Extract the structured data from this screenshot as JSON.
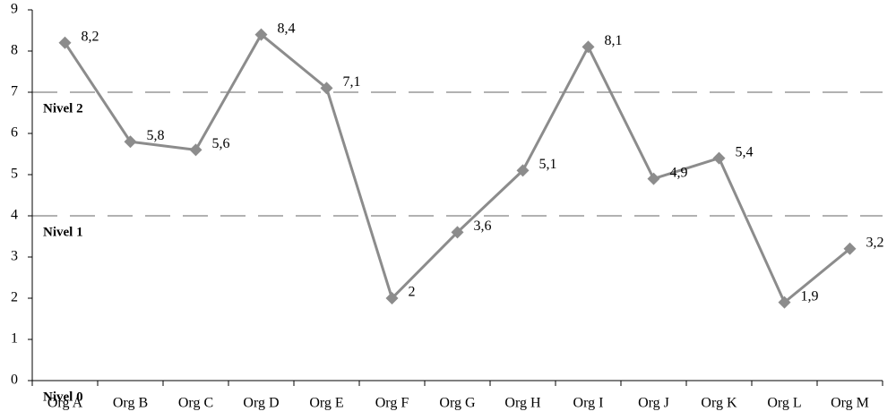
{
  "chart_data": {
    "type": "line",
    "categories": [
      "Org A",
      "Org B",
      "Org C",
      "Org D",
      "Org E",
      "Org F",
      "Org G",
      "Org H",
      "Org I",
      "Org J",
      "Org K",
      "Org L",
      "Org M"
    ],
    "values": [
      8.2,
      5.8,
      5.6,
      8.4,
      7.1,
      2,
      3.6,
      5.1,
      8.1,
      4.9,
      5.4,
      1.9,
      3.2
    ],
    "value_labels": [
      "8,2",
      "5,8",
      "5,6",
      "8,4",
      "7,1",
      "2",
      "3,6",
      "5,1",
      "8,1",
      "4,9",
      "5,4",
      "1,9",
      "3,2"
    ],
    "color": "#8c8c8c",
    "ylim": [
      0,
      9
    ],
    "yticks": [
      0,
      1,
      2,
      3,
      4,
      5,
      6,
      7,
      8,
      9
    ],
    "levels": [
      {
        "value": 7,
        "label": "Nivel 2"
      },
      {
        "value": 4,
        "label": "Nivel 1"
      },
      {
        "value": 0,
        "label": "Nivel 0"
      }
    ]
  }
}
